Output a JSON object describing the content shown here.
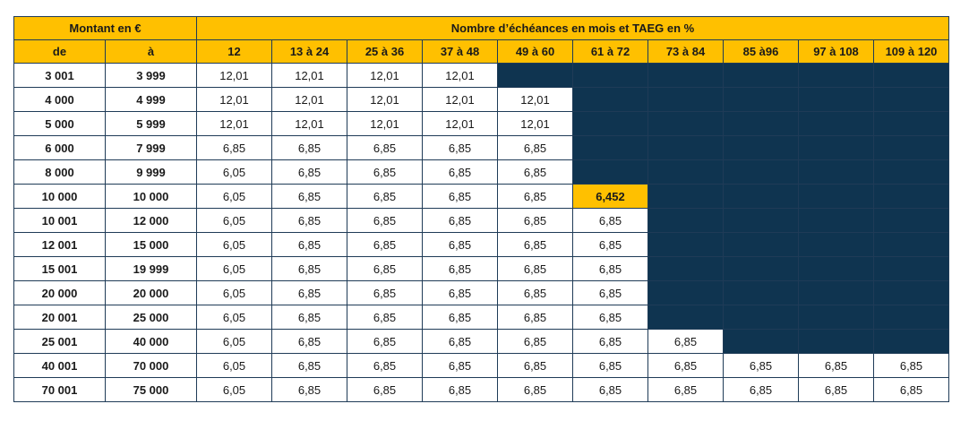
{
  "header": {
    "montant_label": "Montant en €",
    "nombre_label": "Nombre d’échéances en mois et TAEG en %",
    "de_label": "de",
    "a_label": "à",
    "columns": [
      "12",
      "13 à 24",
      "25 à 36",
      "37 à 48",
      "49 à 60",
      "61 à 72",
      "73 à 84",
      "85 à96",
      "97 à 108",
      "109 à 120"
    ]
  },
  "rows": [
    {
      "de": "3 001",
      "a": "3 999",
      "values": [
        "12,01",
        "12,01",
        "12,01",
        "12,01",
        null,
        null,
        null,
        null,
        null,
        null
      ]
    },
    {
      "de": "4 000",
      "a": "4 999",
      "values": [
        "12,01",
        "12,01",
        "12,01",
        "12,01",
        "12,01",
        null,
        null,
        null,
        null,
        null
      ]
    },
    {
      "de": "5 000",
      "a": "5 999",
      "values": [
        "12,01",
        "12,01",
        "12,01",
        "12,01",
        "12,01",
        null,
        null,
        null,
        null,
        null
      ]
    },
    {
      "de": "6 000",
      "a": "7 999",
      "values": [
        "6,85",
        "6,85",
        "6,85",
        "6,85",
        "6,85",
        null,
        null,
        null,
        null,
        null
      ]
    },
    {
      "de": "8 000",
      "a": "9 999",
      "values": [
        "6,05",
        "6,85",
        "6,85",
        "6,85",
        "6,85",
        null,
        null,
        null,
        null,
        null
      ]
    },
    {
      "de": "10 000",
      "a": "10 000",
      "values": [
        "6,05",
        "6,85",
        "6,85",
        "6,85",
        "6,85",
        "6,452",
        null,
        null,
        null,
        null
      ],
      "highlight_index": 5
    },
    {
      "de": "10 001",
      "a": "12 000",
      "values": [
        "6,05",
        "6,85",
        "6,85",
        "6,85",
        "6,85",
        "6,85",
        null,
        null,
        null,
        null
      ]
    },
    {
      "de": "12 001",
      "a": "15 000",
      "values": [
        "6,05",
        "6,85",
        "6,85",
        "6,85",
        "6,85",
        "6,85",
        null,
        null,
        null,
        null
      ]
    },
    {
      "de": "15 001",
      "a": "19 999",
      "values": [
        "6,05",
        "6,85",
        "6,85",
        "6,85",
        "6,85",
        "6,85",
        null,
        null,
        null,
        null
      ]
    },
    {
      "de": "20 000",
      "a": "20 000",
      "values": [
        "6,05",
        "6,85",
        "6,85",
        "6,85",
        "6,85",
        "6,85",
        null,
        null,
        null,
        null
      ]
    },
    {
      "de": "20 001",
      "a": "25 000",
      "values": [
        "6,05",
        "6,85",
        "6,85",
        "6,85",
        "6,85",
        "6,85",
        null,
        null,
        null,
        null
      ]
    },
    {
      "de": "25 001",
      "a": "40 000",
      "values": [
        "6,05",
        "6,85",
        "6,85",
        "6,85",
        "6,85",
        "6,85",
        "6,85",
        null,
        null,
        null
      ]
    },
    {
      "de": "40 001",
      "a": "70 000",
      "values": [
        "6,05",
        "6,85",
        "6,85",
        "6,85",
        "6,85",
        "6,85",
        "6,85",
        "6,85",
        "6,85",
        "6,85"
      ]
    },
    {
      "de": "70 001",
      "a": "75 000",
      "values": [
        "6,05",
        "6,85",
        "6,85",
        "6,85",
        "6,85",
        "6,85",
        "6,85",
        "6,85",
        "6,85",
        "6,85"
      ]
    }
  ],
  "colors": {
    "header_bg": "#ffc000",
    "unavailable_bg": "#0f3450",
    "highlight_bg": "#ffc000",
    "border": "#1f3b57"
  }
}
